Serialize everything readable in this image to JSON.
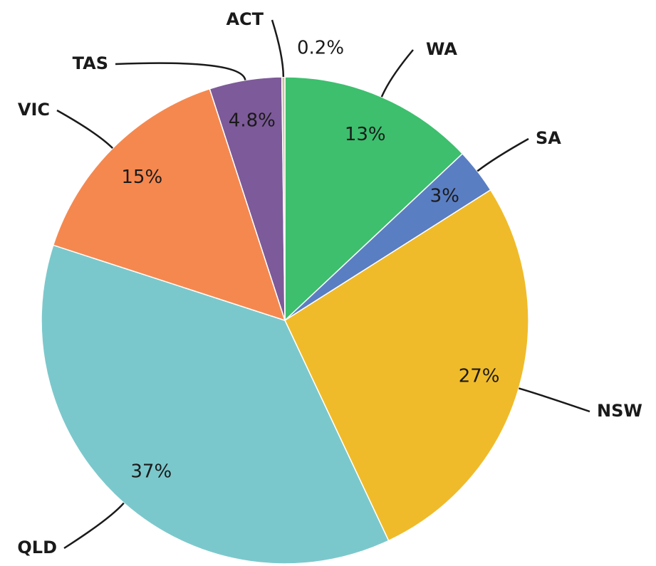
{
  "chart_data": {
    "type": "pie",
    "categories": [
      "WA",
      "SA",
      "NSW",
      "QLD",
      "VIC",
      "TAS",
      "ACT"
    ],
    "values": [
      13,
      3,
      27,
      37,
      15,
      4.8,
      0.2
    ],
    "value_labels": [
      "13%",
      "3%",
      "27%",
      "37%",
      "15%",
      "4.8%",
      "0.2%"
    ],
    "colors": [
      "#3dbf6e",
      "#5a7ec2",
      "#f0bb2a",
      "#7bc8cc",
      "#f5884f",
      "#7d5a99",
      "#c8c49a"
    ]
  }
}
